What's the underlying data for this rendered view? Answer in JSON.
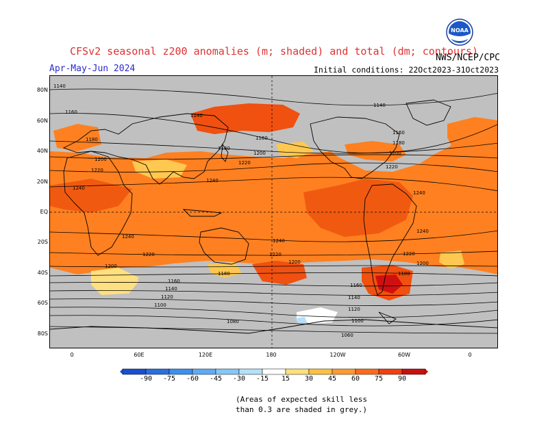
{
  "header": {
    "title": "CFSv2 seasonal z200 anomalies (m; shaded) and total (dm; contours)",
    "period": "Apr-May-Jun 2024",
    "initial_conditions": "Initial conditions: 22Oct2023-31Oct2023",
    "agency": "NWS/NCEP/CPC",
    "logo_text": "NOAA"
  },
  "map": {
    "lat_labels": [
      "80N",
      "60N",
      "40N",
      "20N",
      "EQ",
      "20S",
      "40S",
      "60S",
      "80S"
    ],
    "lon_labels": [
      "0",
      "60E",
      "120E",
      "180",
      "120W",
      "60W",
      "0"
    ],
    "contour_labels": [
      "1140",
      "1160",
      "1140",
      "1180",
      "1140",
      "1160",
      "1180",
      "1160",
      "1200",
      "1180",
      "1200",
      "1220",
      "1200",
      "1220",
      "1220",
      "1240",
      "1240",
      "1240",
      "1240",
      "1240",
      "1240",
      "1220",
      "1220",
      "1200",
      "1200",
      "1220",
      "1200",
      "1180",
      "1160",
      "1180",
      "1140",
      "1160",
      "1120",
      "1140",
      "1100",
      "1120",
      "1080",
      "1100",
      "1060"
    ],
    "colors": {
      "grey": "#c0c0c0",
      "light_yellow": "#ffe080",
      "yellow_orange": "#ffc040",
      "orange": "#ff8020",
      "dark_orange": "#f05010",
      "red": "#d01010",
      "white": "#ffffff"
    }
  },
  "colorbar": {
    "ticks": [
      "-90",
      "-75",
      "-60",
      "-45",
      "-30",
      "-15",
      "15",
      "30",
      "45",
      "60",
      "75",
      "90"
    ],
    "colors": [
      "#1a4fd0",
      "#2a6ee0",
      "#3d8ff0",
      "#60aaf5",
      "#86c6f8",
      "#b4e0fb",
      "#ffffff",
      "#ffe07a",
      "#ffc040",
      "#ff9a30",
      "#ff6a1a",
      "#f0400e",
      "#c81010"
    ]
  },
  "note": {
    "line1": "(Areas of expected skill less",
    "line2": "than 0.3 are shaded in grey.)"
  }
}
